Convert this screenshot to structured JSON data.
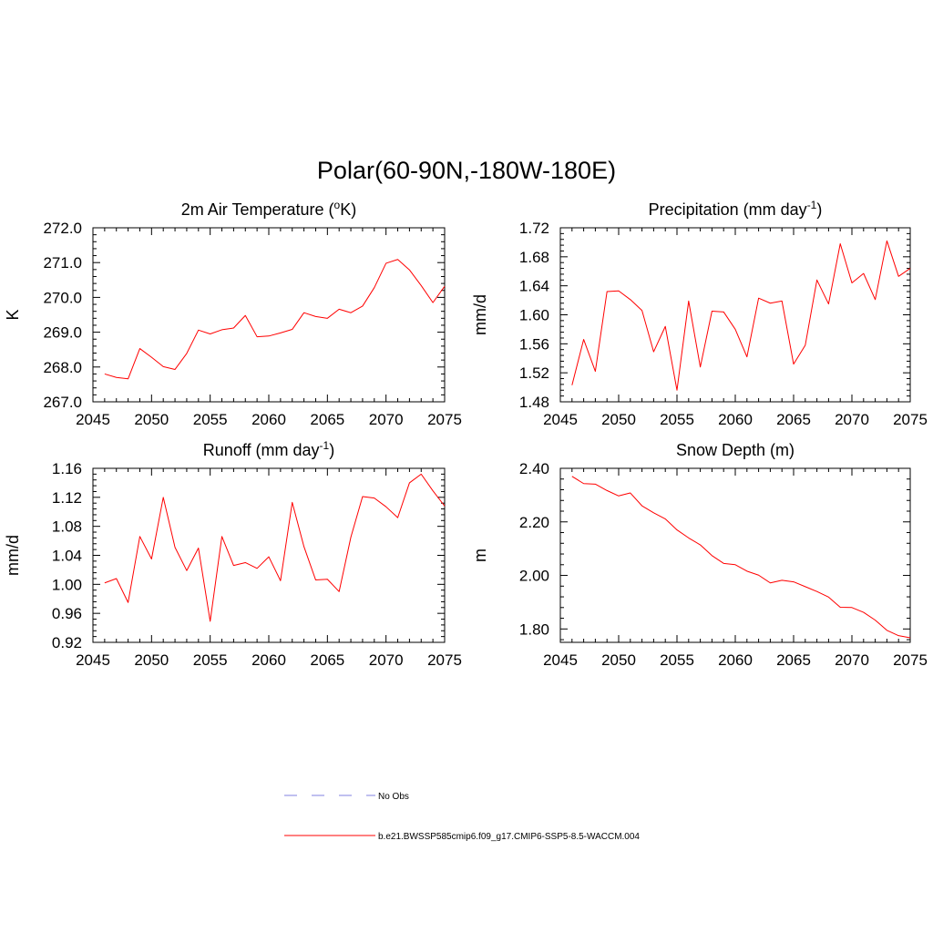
{
  "title": "Polar(60-90N,-180W-180E)",
  "colors": {
    "model": "#ff0000",
    "obs": "#9a9ae6",
    "axis": "#000000"
  },
  "legend": {
    "obs_label": "No Obs",
    "model_label": "b.e21.BWSSP585cmip6.f09_g17.CMIP6-SSP5-8.5-WACCM.004"
  },
  "chart_data": [
    {
      "type": "line",
      "title": "2m Air Temperature (",
      "title_sup": "o",
      "title_after": "K)",
      "title_sup2": "",
      "title_end": "",
      "xlabel": "",
      "ylabel": "K",
      "xlim": [
        2045,
        2075
      ],
      "ylim": [
        267.0,
        272.0
      ],
      "xticks": [
        2045,
        2050,
        2055,
        2060,
        2065,
        2070,
        2075
      ],
      "xtick_labels": [
        "2045",
        "2050",
        "2055",
        "2060",
        "2065",
        "2070",
        "2075"
      ],
      "yticks": [
        267.0,
        268.0,
        269.0,
        270.0,
        271.0,
        272.0
      ],
      "ytick_labels": [
        "267.0",
        "268.0",
        "269.0",
        "270.0",
        "271.0",
        "272.0"
      ],
      "x": [
        2046,
        2047,
        2048,
        2049,
        2050,
        2051,
        2052,
        2053,
        2054,
        2055,
        2056,
        2057,
        2058,
        2059,
        2060,
        2061,
        2062,
        2063,
        2064,
        2065,
        2066,
        2067,
        2068,
        2069,
        2070,
        2071,
        2072,
        2073,
        2074,
        2075
      ],
      "series": [
        {
          "name": "b.e21.BWSSP585cmip6.f09_g17.CMIP6-SSP5-8.5-WACCM.004",
          "values": [
            267.8,
            267.7,
            267.66,
            268.53,
            268.28,
            268.01,
            267.93,
            268.39,
            269.06,
            268.95,
            269.07,
            269.12,
            269.48,
            268.87,
            268.89,
            268.98,
            269.08,
            269.56,
            269.45,
            269.4,
            269.66,
            269.56,
            269.75,
            270.28,
            270.98,
            271.09,
            270.79,
            270.34,
            269.85,
            270.32
          ]
        }
      ]
    },
    {
      "type": "line",
      "title": "Precipitation (mm day",
      "title_sup": "-1",
      "title_after": ")",
      "title_sup2": "",
      "title_end": "",
      "xlabel": "",
      "ylabel": "mm/d",
      "xlim": [
        2045,
        2075
      ],
      "ylim": [
        1.48,
        1.72
      ],
      "xticks": [
        2045,
        2050,
        2055,
        2060,
        2065,
        2070,
        2075
      ],
      "xtick_labels": [
        "2045",
        "2050",
        "2055",
        "2060",
        "2065",
        "2070",
        "2075"
      ],
      "yticks": [
        1.48,
        1.52,
        1.56,
        1.6,
        1.64,
        1.68,
        1.72
      ],
      "ytick_labels": [
        "1.48",
        "1.52",
        "1.56",
        "1.60",
        "1.64",
        "1.68",
        "1.72"
      ],
      "x": [
        2046,
        2047,
        2048,
        2049,
        2050,
        2051,
        2052,
        2053,
        2054,
        2055,
        2056,
        2057,
        2058,
        2059,
        2060,
        2061,
        2062,
        2063,
        2064,
        2065,
        2066,
        2067,
        2068,
        2069,
        2070,
        2071,
        2072,
        2073,
        2074,
        2075
      ],
      "series": [
        {
          "name": "b.e21.BWSSP585cmip6.f09_g17.CMIP6-SSP5-8.5-WACCM.004",
          "values": [
            1.503,
            1.566,
            1.522,
            1.632,
            1.633,
            1.621,
            1.606,
            1.549,
            1.584,
            1.496,
            1.619,
            1.528,
            1.605,
            1.604,
            1.58,
            1.542,
            1.623,
            1.616,
            1.619,
            1.532,
            1.558,
            1.648,
            1.615,
            1.698,
            1.644,
            1.657,
            1.621,
            1.702,
            1.653,
            1.664
          ]
        }
      ]
    },
    {
      "type": "line",
      "title": "Runoff (mm day",
      "title_sup": "-1",
      "title_after": ")",
      "title_sup2": "",
      "title_end": "",
      "xlabel": "",
      "ylabel": "mm/d",
      "xlim": [
        2045,
        2075
      ],
      "ylim": [
        0.92,
        1.16
      ],
      "xticks": [
        2045,
        2050,
        2055,
        2060,
        2065,
        2070,
        2075
      ],
      "xtick_labels": [
        "2045",
        "2050",
        "2055",
        "2060",
        "2065",
        "2070",
        "2075"
      ],
      "yticks": [
        0.92,
        0.96,
        1.0,
        1.04,
        1.08,
        1.12,
        1.16
      ],
      "ytick_labels": [
        "0.92",
        "0.96",
        "1.00",
        "1.04",
        "1.08",
        "1.12",
        "1.16"
      ],
      "x": [
        2046,
        2047,
        2048,
        2049,
        2050,
        2051,
        2052,
        2053,
        2054,
        2055,
        2056,
        2057,
        2058,
        2059,
        2060,
        2061,
        2062,
        2063,
        2064,
        2065,
        2066,
        2067,
        2068,
        2069,
        2070,
        2071,
        2072,
        2073,
        2074,
        2075
      ],
      "series": [
        {
          "name": "b.e21.BWSSP585cmip6.f09_g17.CMIP6-SSP5-8.5-WACCM.004",
          "values": [
            1.002,
            1.008,
            0.975,
            1.066,
            1.035,
            1.12,
            1.051,
            1.019,
            1.05,
            0.949,
            1.066,
            1.026,
            1.03,
            1.022,
            1.038,
            1.005,
            1.113,
            1.052,
            1.006,
            1.007,
            0.99,
            1.065,
            1.121,
            1.119,
            1.107,
            1.092,
            1.14,
            1.152,
            1.129,
            1.108
          ]
        }
      ]
    },
    {
      "type": "line",
      "title": "Snow Depth (m)",
      "title_sup": "",
      "title_after": "",
      "title_sup2": "",
      "title_end": "",
      "xlabel": "",
      "ylabel": "m",
      "xlim": [
        2045,
        2075
      ],
      "ylim": [
        1.75,
        2.4
      ],
      "xticks": [
        2045,
        2050,
        2055,
        2060,
        2065,
        2070,
        2075
      ],
      "xtick_labels": [
        "2045",
        "2050",
        "2055",
        "2060",
        "2065",
        "2070",
        "2075"
      ],
      "yticks": [
        1.8,
        2.0,
        2.2,
        2.4
      ],
      "ytick_labels": [
        "1.80",
        "2.00",
        "2.20",
        "2.40"
      ],
      "x": [
        2046,
        2047,
        2048,
        2049,
        2050,
        2051,
        2052,
        2053,
        2054,
        2055,
        2056,
        2057,
        2058,
        2059,
        2060,
        2061,
        2062,
        2063,
        2064,
        2065,
        2066,
        2067,
        2068,
        2069,
        2070,
        2071,
        2072,
        2073,
        2074,
        2075
      ],
      "series": [
        {
          "name": "b.e21.BWSSP585cmip6.f09_g17.CMIP6-SSP5-8.5-WACCM.004",
          "values": [
            2.37,
            2.343,
            2.341,
            2.317,
            2.297,
            2.308,
            2.26,
            2.234,
            2.211,
            2.17,
            2.14,
            2.114,
            2.074,
            2.045,
            2.04,
            2.016,
            2.001,
            1.972,
            1.982,
            1.976,
            1.958,
            1.94,
            1.919,
            1.881,
            1.88,
            1.862,
            1.833,
            1.795,
            1.775,
            1.767
          ]
        }
      ]
    }
  ]
}
